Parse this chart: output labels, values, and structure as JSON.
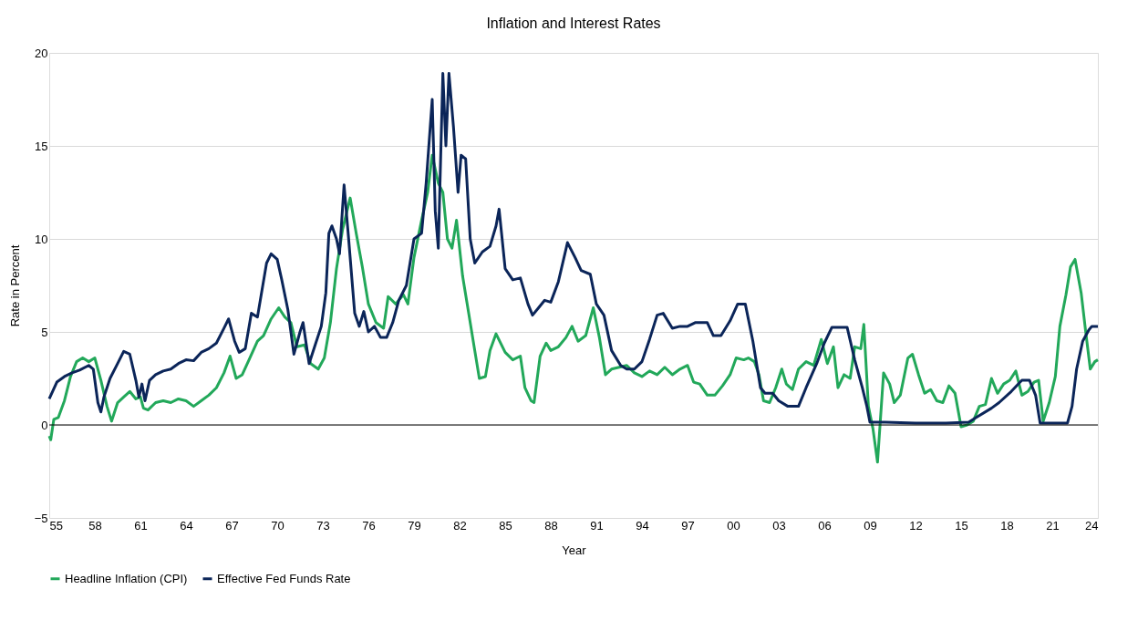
{
  "chart_data": {
    "type": "line",
    "title": "Inflation and Interest Rates",
    "xlabel": "Year",
    "ylabel": "Rate in Percent",
    "xlim": [
      1955,
      2024
    ],
    "ylim": [
      -5,
      20
    ],
    "yticks": [
      -5,
      0,
      5,
      10,
      15,
      20
    ],
    "xticks": [
      {
        "value": 1955,
        "label": "55"
      },
      {
        "value": 1958,
        "label": "58"
      },
      {
        "value": 1961,
        "label": "61"
      },
      {
        "value": 1964,
        "label": "64"
      },
      {
        "value": 1967,
        "label": "67"
      },
      {
        "value": 1970,
        "label": "70"
      },
      {
        "value": 1973,
        "label": "73"
      },
      {
        "value": 1976,
        "label": "76"
      },
      {
        "value": 1979,
        "label": "79"
      },
      {
        "value": 1982,
        "label": "82"
      },
      {
        "value": 1985,
        "label": "85"
      },
      {
        "value": 1988,
        "label": "88"
      },
      {
        "value": 1991,
        "label": "91"
      },
      {
        "value": 1994,
        "label": "94"
      },
      {
        "value": 1997,
        "label": "97"
      },
      {
        "value": 2000,
        "label": "00"
      },
      {
        "value": 2003,
        "label": "03"
      },
      {
        "value": 2006,
        "label": "06"
      },
      {
        "value": 2009,
        "label": "09"
      },
      {
        "value": 2012,
        "label": "12"
      },
      {
        "value": 2015,
        "label": "15"
      },
      {
        "value": 2018,
        "label": "18"
      },
      {
        "value": 2021,
        "label": "21"
      },
      {
        "value": 2024,
        "label": "24"
      }
    ],
    "grid": "y",
    "legend": "bottom",
    "marker": "none",
    "line_style": "solid",
    "ref_lines": [
      {
        "axis": "y",
        "value": 0,
        "label": null,
        "color": "#000000"
      }
    ],
    "series": [
      {
        "name": "Headline Inflation (CPI)",
        "color": "#22a85a",
        "x": [
          1955,
          1955.1,
          1955.3,
          1955.6,
          1956,
          1956.4,
          1956.8,
          1957.2,
          1957.6,
          1958,
          1958.4,
          1958.8,
          1959.1,
          1959.5,
          1959.9,
          1960.3,
          1960.7,
          1961,
          1961.2,
          1961.5,
          1962,
          1962.5,
          1963,
          1963.5,
          1964,
          1964.5,
          1965,
          1965.5,
          1966,
          1966.5,
          1966.9,
          1967.3,
          1967.7,
          1968.2,
          1968.7,
          1969.1,
          1969.6,
          1970.1,
          1970.5,
          1970.9,
          1971.3,
          1971.8,
          1972.2,
          1972.7,
          1973.1,
          1973.5,
          1973.9,
          1974.3,
          1974.8,
          1975.2,
          1975.6,
          1976,
          1976.5,
          1977,
          1977.3,
          1977.8,
          1978.3,
          1978.6,
          1979,
          1979.5,
          1979.9,
          1980.2,
          1980.6,
          1980.9,
          1981.2,
          1981.5,
          1981.8,
          1982.2,
          1982.6,
          1983,
          1983.3,
          1983.7,
          1984,
          1984.4,
          1985,
          1985.5,
          1986,
          1986.3,
          1986.7,
          1986.9,
          1987.3,
          1987.7,
          1988,
          1988.5,
          1989,
          1989.4,
          1989.8,
          1990.3,
          1990.8,
          1991.2,
          1991.6,
          1992,
          1992.5,
          1993,
          1993.5,
          1994,
          1994.5,
          1995,
          1995.5,
          1996,
          1996.5,
          1997,
          1997.4,
          1997.8,
          1998.3,
          1998.8,
          1999.3,
          1999.8,
          2000.2,
          2000.7,
          2001,
          2001.4,
          2001.7,
          2002,
          2002.4,
          2002.8,
          2003.2,
          2003.5,
          2003.9,
          2004.3,
          2004.8,
          2005.3,
          2005.8,
          2006.2,
          2006.6,
          2006.9,
          2007.3,
          2007.7,
          2008,
          2008.4,
          2008.6,
          2008.9,
          2009.2,
          2009.5,
          2009.9,
          2010.3,
          2010.6,
          2011,
          2011.5,
          2011.8,
          2012.2,
          2012.6,
          2013,
          2013.4,
          2013.8,
          2014.2,
          2014.6,
          2015,
          2015.4,
          2015.8,
          2016.2,
          2016.6,
          2017,
          2017.4,
          2017.8,
          2018.2,
          2018.6,
          2019,
          2019.4,
          2019.8,
          2020.1,
          2020.4,
          2020.8,
          2021.2,
          2021.5,
          2021.9,
          2022.2,
          2022.5,
          2022.9,
          2023.2,
          2023.5,
          2023.8,
          2024
        ],
        "values": [
          -0.6,
          -0.8,
          0.3,
          0.4,
          1.3,
          2.6,
          3.4,
          3.6,
          3.4,
          3.6,
          2.4,
          1.0,
          0.2,
          1.2,
          1.5,
          1.8,
          1.4,
          1.5,
          0.9,
          0.8,
          1.2,
          1.3,
          1.2,
          1.4,
          1.3,
          1.0,
          1.3,
          1.6,
          2.0,
          2.8,
          3.7,
          2.5,
          2.7,
          3.6,
          4.5,
          4.8,
          5.7,
          6.3,
          5.8,
          5.5,
          4.2,
          4.3,
          3.3,
          3.0,
          3.6,
          5.5,
          8.4,
          10.5,
          12.2,
          10.3,
          8.5,
          6.5,
          5.5,
          5.2,
          6.9,
          6.5,
          7.0,
          6.5,
          9.0,
          11.0,
          12.5,
          14.5,
          13.0,
          12.5,
          10.0,
          9.5,
          11.0,
          8.0,
          6.0,
          4.0,
          2.5,
          2.6,
          4.0,
          4.9,
          3.9,
          3.5,
          3.7,
          2.0,
          1.3,
          1.2,
          3.7,
          4.4,
          4.0,
          4.2,
          4.7,
          5.3,
          4.5,
          4.8,
          6.3,
          4.7,
          2.7,
          3.0,
          3.1,
          3.2,
          2.8,
          2.6,
          2.9,
          2.7,
          3.1,
          2.7,
          3.0,
          3.2,
          2.3,
          2.2,
          1.6,
          1.6,
          2.1,
          2.7,
          3.6,
          3.5,
          3.6,
          3.4,
          2.7,
          1.3,
          1.2,
          2.0,
          3.0,
          2.2,
          1.9,
          3.0,
          3.4,
          3.2,
          4.6,
          3.3,
          4.2,
          2.0,
          2.7,
          2.5,
          4.2,
          4.1,
          5.4,
          1.0,
          -0.2,
          -2.0,
          2.8,
          2.2,
          1.2,
          1.6,
          3.6,
          3.8,
          2.7,
          1.7,
          1.9,
          1.3,
          1.2,
          2.1,
          1.7,
          -0.1,
          0.0,
          0.2,
          1.0,
          1.1,
          2.5,
          1.7,
          2.2,
          2.4,
          2.9,
          1.6,
          1.8,
          2.3,
          2.4,
          0.2,
          1.2,
          2.6,
          5.3,
          7.0,
          8.5,
          8.9,
          7.1,
          5.0,
          3.0,
          3.4,
          3.5
        ]
      },
      {
        "name": "Effective Fed Funds Rate",
        "color": "#0b2559",
        "x": [
          1955,
          1955.5,
          1956,
          1956.5,
          1957,
          1957.6,
          1957.9,
          1958.2,
          1958.4,
          1958.6,
          1959,
          1959.5,
          1959.9,
          1960.3,
          1960.7,
          1960.9,
          1961.1,
          1961.3,
          1961.6,
          1962,
          1962.5,
          1963,
          1963.5,
          1964,
          1964.5,
          1965,
          1965.5,
          1966,
          1966.5,
          1966.8,
          1967.2,
          1967.5,
          1967.9,
          1968.3,
          1968.7,
          1969.3,
          1969.6,
          1970,
          1970.3,
          1970.7,
          1971.1,
          1971.5,
          1971.7,
          1972.1,
          1972.5,
          1972.9,
          1973.2,
          1973.4,
          1973.6,
          1973.9,
          1974.1,
          1974.4,
          1974.7,
          1975.1,
          1975.4,
          1975.7,
          1976,
          1976.4,
          1976.8,
          1977.2,
          1977.6,
          1978,
          1978.5,
          1979,
          1979.5,
          1979.8,
          1980.2,
          1980.4,
          1980.6,
          1980.9,
          1981.1,
          1981.3,
          1981.6,
          1981.9,
          1982.1,
          1982.4,
          1982.7,
          1983,
          1983.5,
          1984,
          1984.4,
          1984.6,
          1985,
          1985.5,
          1986,
          1986.5,
          1986.8,
          1987.2,
          1987.6,
          1988,
          1988.5,
          1989.1,
          1989.6,
          1990,
          1990.6,
          1991,
          1991.5,
          1992,
          1992.6,
          1993,
          1993.5,
          1994,
          1994.5,
          1995,
          1995.4,
          1996,
          1996.5,
          1997,
          1997.5,
          1998.3,
          1998.7,
          1999.2,
          1999.8,
          2000.3,
          2000.8,
          2001.3,
          2001.8,
          2002.1,
          2002.6,
          2003,
          2003.6,
          2004.3,
          2004.8,
          2005.5,
          2006,
          2006.5,
          2007.5,
          2008,
          2008.5,
          2008.8,
          2009,
          2010,
          2012,
          2014,
          2015.5,
          2016,
          2017,
          2017.5,
          2018.3,
          2019,
          2019.5,
          2019.9,
          2020.2,
          2022,
          2022.3,
          2022.6,
          2023,
          2023.4,
          2023.6,
          2024
        ],
        "values": [
          1.4,
          2.3,
          2.6,
          2.8,
          2.95,
          3.2,
          3.0,
          1.2,
          0.7,
          1.5,
          2.5,
          3.3,
          3.95,
          3.8,
          2.4,
          1.5,
          2.2,
          1.3,
          2.4,
          2.7,
          2.9,
          3.0,
          3.3,
          3.5,
          3.45,
          3.9,
          4.1,
          4.4,
          5.2,
          5.7,
          4.5,
          3.9,
          4.1,
          6.0,
          5.8,
          8.7,
          9.2,
          8.9,
          7.8,
          6.2,
          3.8,
          5.0,
          5.5,
          3.3,
          4.3,
          5.3,
          7.1,
          10.3,
          10.7,
          10.0,
          9.2,
          12.9,
          10.0,
          6.0,
          5.3,
          6.1,
          5.0,
          5.3,
          4.7,
          4.7,
          5.5,
          6.7,
          7.5,
          10.0,
          10.3,
          13.0,
          17.5,
          11.5,
          9.5,
          18.9,
          15.0,
          18.9,
          16.0,
          12.5,
          14.5,
          14.3,
          10.0,
          8.7,
          9.3,
          9.6,
          10.7,
          11.6,
          8.4,
          7.8,
          7.9,
          6.5,
          5.9,
          6.3,
          6.7,
          6.6,
          7.7,
          9.8,
          9.0,
          8.3,
          8.1,
          6.5,
          5.9,
          4.0,
          3.2,
          3.0,
          3.0,
          3.4,
          4.6,
          5.9,
          6.0,
          5.2,
          5.3,
          5.3,
          5.5,
          5.5,
          4.8,
          4.8,
          5.6,
          6.5,
          6.5,
          4.5,
          2.0,
          1.7,
          1.7,
          1.3,
          1.0,
          1.0,
          2.0,
          3.3,
          4.4,
          5.25,
          5.25,
          3.5,
          2.0,
          1.0,
          0.15,
          0.15,
          0.1,
          0.1,
          0.15,
          0.4,
          0.9,
          1.2,
          1.8,
          2.4,
          2.4,
          1.6,
          0.1,
          0.1,
          1.0,
          3.0,
          4.5,
          5.1,
          5.3,
          5.3
        ]
      }
    ]
  }
}
